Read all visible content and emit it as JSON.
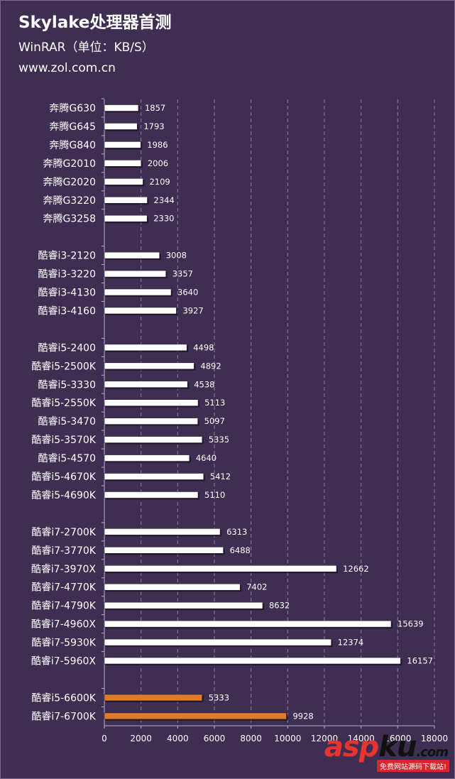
{
  "header": {
    "title": "Skylake处理器首测",
    "subtitle": "WinRAR（单位：KB/S）",
    "source": "www.zol.com.cn"
  },
  "watermark": {
    "brand_a": "asp",
    "brand_b": "ku",
    "brand_c": ".com",
    "tagline": "免费网站源码下载站!"
  },
  "colors": {
    "background": "#3e2f52",
    "bar_default": "#ffffff",
    "bar_highlight": "#e07b26",
    "grid": "#8a7fa0"
  },
  "chart_data": {
    "type": "bar",
    "orientation": "horizontal",
    "title": "Skylake处理器首测",
    "subtitle": "WinRAR（单位：KB/S）",
    "xlim": [
      0,
      18000
    ],
    "xticks": [
      0,
      2000,
      4000,
      6000,
      8000,
      10000,
      12000,
      14000,
      16000,
      18000
    ],
    "grid": true,
    "groups": [
      {
        "items": [
          {
            "label": "奔腾G630",
            "value": 1857
          },
          {
            "label": "奔腾G645",
            "value": 1793
          },
          {
            "label": "奔腾G840",
            "value": 1986
          },
          {
            "label": "奔腾G2010",
            "value": 2006
          },
          {
            "label": "奔腾G2020",
            "value": 2109
          },
          {
            "label": "奔腾G3220",
            "value": 2344
          },
          {
            "label": "奔腾G3258",
            "value": 2330
          }
        ]
      },
      {
        "items": [
          {
            "label": "酷睿i3-2120",
            "value": 3008
          },
          {
            "label": "酷睿i3-3220",
            "value": 3357
          },
          {
            "label": "酷睿i3-4130",
            "value": 3640
          },
          {
            "label": "酷睿i3-4160",
            "value": 3927
          }
        ]
      },
      {
        "items": [
          {
            "label": "酷睿i5-2400",
            "value": 4498
          },
          {
            "label": "酷睿i5-2500K",
            "value": 4892
          },
          {
            "label": "酷睿i5-3330",
            "value": 4538
          },
          {
            "label": "酷睿i5-2550K",
            "value": 5113
          },
          {
            "label": "酷睿i5-3470",
            "value": 5097
          },
          {
            "label": "酷睿i5-3570K",
            "value": 5335
          },
          {
            "label": "酷睿i5-4570",
            "value": 4640
          },
          {
            "label": "酷睿i5-4670K",
            "value": 5412
          },
          {
            "label": "酷睿i5-4690K",
            "value": 5110
          }
        ]
      },
      {
        "items": [
          {
            "label": "酷睿i7-2700K",
            "value": 6313
          },
          {
            "label": "酷睿i7-3770K",
            "value": 6488
          },
          {
            "label": "酷睿i7-3970X",
            "value": 12662
          },
          {
            "label": "酷睿i7-4770K",
            "value": 7402
          },
          {
            "label": "酷睿i7-4790K",
            "value": 8632
          },
          {
            "label": "酷睿i7-4960X",
            "value": 15639
          },
          {
            "label": "酷睿i7-5930K",
            "value": 12374
          },
          {
            "label": "酷睿i7-5960X",
            "value": 16157
          }
        ]
      },
      {
        "items": [
          {
            "label": "酷睿i5-6600K",
            "value": 5333,
            "highlight": true
          },
          {
            "label": "酷睿i7-6700K",
            "value": 9928,
            "highlight": true
          }
        ]
      }
    ]
  }
}
